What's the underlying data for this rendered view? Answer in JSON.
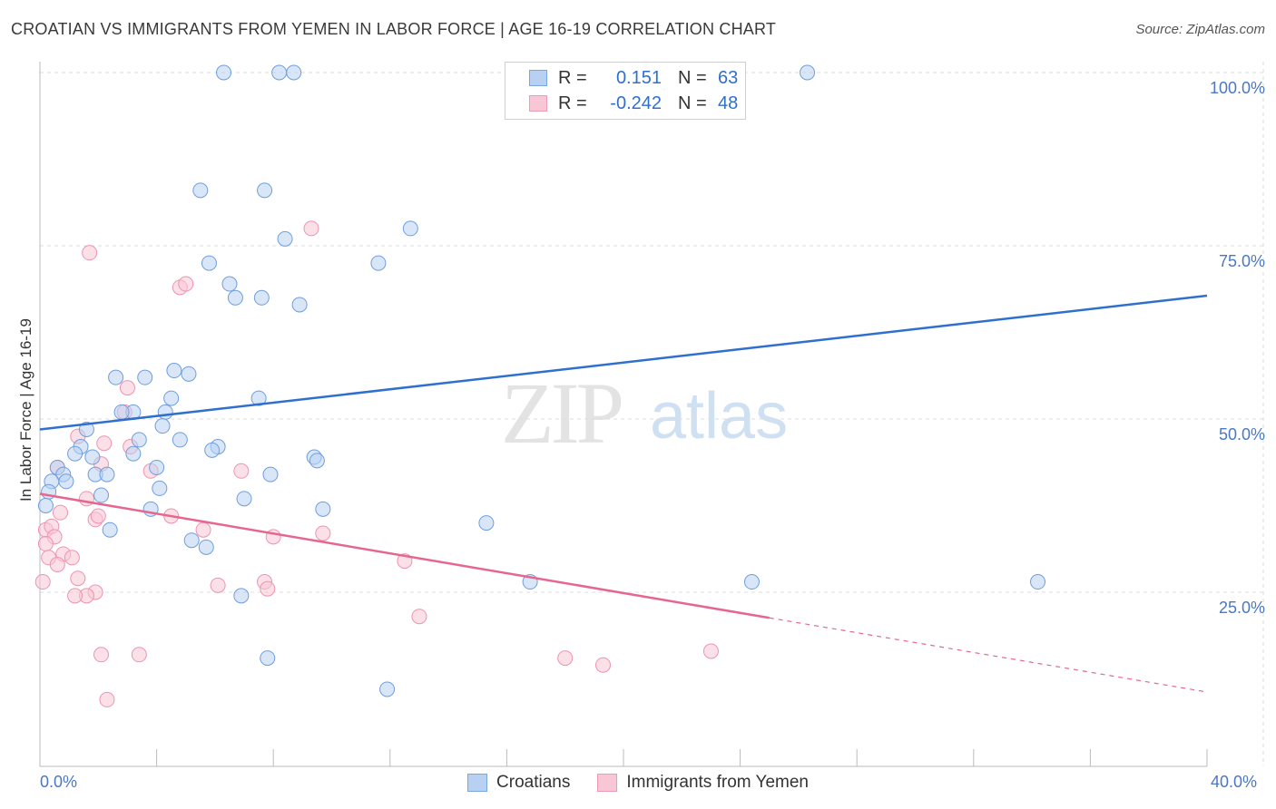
{
  "title": "CROATIAN VS IMMIGRANTS FROM YEMEN IN LABOR FORCE | AGE 16-19 CORRELATION CHART",
  "source": "Source: ZipAtlas.com",
  "watermark": {
    "zip": "ZIP",
    "atlas": "atlas"
  },
  "legend": {
    "r_label": "R =",
    "n_label": "N =",
    "rows": [
      {
        "r": "0.151",
        "n": "63",
        "fill": "#b8d1f3",
        "stroke": "#7aa6e0"
      },
      {
        "r": "-0.242",
        "n": "48",
        "fill": "#f9c6d6",
        "stroke": "#ef9ab4"
      }
    ]
  },
  "bottom_legend": [
    {
      "label": "Croatians",
      "fill": "#b8d1f3",
      "stroke": "#7aa6e0"
    },
    {
      "label": "Immigrants from Yemen",
      "fill": "#f9c6d6",
      "stroke": "#ef9ab4"
    }
  ],
  "axes": {
    "ylabel": "In Labor Force | Age 16-19",
    "x_min_label": "0.0%",
    "x_max_label": "40.0%",
    "y_ticks": [
      "100.0%",
      "75.0%",
      "50.0%",
      "25.0%"
    ]
  },
  "colors": {
    "blue_line": "#2f6fce",
    "pink_line": "#e5678f",
    "blue_fill": "#b8d1f3",
    "blue_stroke": "#6f9edd",
    "pink_fill": "#f9c6d6",
    "pink_stroke": "#ec94b0",
    "grid": "#dddddd",
    "tick_text": "#4a78c4"
  },
  "chart_data": {
    "type": "scatter",
    "xlabel": "",
    "ylabel": "In Labor Force | Age 16-19",
    "xlim": [
      0,
      40
    ],
    "ylim": [
      0,
      100
    ],
    "grid": true,
    "series": [
      {
        "name": "Croatians",
        "trend": [
          [
            0,
            48.5
          ],
          [
            40,
            67.8
          ]
        ],
        "trend_dashed_from": null,
        "points": [
          [
            6.3,
            100
          ],
          [
            8.2,
            100
          ],
          [
            8.7,
            100
          ],
          [
            22.8,
            100
          ],
          [
            26.3,
            100
          ],
          [
            5.5,
            83
          ],
          [
            7.7,
            83
          ],
          [
            12.7,
            77.5
          ],
          [
            8.4,
            76
          ],
          [
            5.8,
            72.5
          ],
          [
            11.6,
            72.5
          ],
          [
            6.5,
            69.5
          ],
          [
            6.7,
            67.5
          ],
          [
            7.6,
            67.5
          ],
          [
            8.9,
            66.5
          ],
          [
            4.6,
            57
          ],
          [
            5.1,
            56.5
          ],
          [
            2.6,
            56
          ],
          [
            3.6,
            56
          ],
          [
            4.5,
            53
          ],
          [
            7.5,
            53
          ],
          [
            3.2,
            51
          ],
          [
            2.8,
            51
          ],
          [
            4.3,
            51
          ],
          [
            4.2,
            49
          ],
          [
            1.6,
            48.5
          ],
          [
            4.8,
            47
          ],
          [
            3.4,
            47
          ],
          [
            6.1,
            46
          ],
          [
            5.9,
            45.5
          ],
          [
            1.4,
            46
          ],
          [
            1.2,
            45
          ],
          [
            1.8,
            44.5
          ],
          [
            3.2,
            45
          ],
          [
            9.4,
            44.5
          ],
          [
            9.5,
            44
          ],
          [
            0.6,
            43
          ],
          [
            0.8,
            42
          ],
          [
            4.0,
            43
          ],
          [
            1.9,
            42
          ],
          [
            2.3,
            42
          ],
          [
            0.4,
            41
          ],
          [
            7.9,
            42
          ],
          [
            0.9,
            41
          ],
          [
            0.3,
            39.5
          ],
          [
            4.1,
            40
          ],
          [
            2.1,
            39
          ],
          [
            7.0,
            38.5
          ],
          [
            3.8,
            37
          ],
          [
            9.7,
            37
          ],
          [
            15.3,
            35
          ],
          [
            0.2,
            37.5
          ],
          [
            2.4,
            34
          ],
          [
            5.2,
            32.5
          ],
          [
            5.7,
            31.5
          ],
          [
            16.8,
            26.5
          ],
          [
            24.4,
            26.5
          ],
          [
            34.2,
            26.5
          ],
          [
            6.9,
            24.5
          ],
          [
            7.8,
            15.5
          ],
          [
            11.9,
            11
          ]
        ]
      },
      {
        "name": "Immigrants from Yemen",
        "trend": [
          [
            0,
            39.2
          ],
          [
            25,
            21.3
          ]
        ],
        "trend_dashed_to": [
          40,
          10.6
        ],
        "points": [
          [
            9.3,
            77.5
          ],
          [
            1.7,
            74
          ],
          [
            4.8,
            69
          ],
          [
            5.0,
            69.5
          ],
          [
            3.0,
            54.5
          ],
          [
            2.9,
            51
          ],
          [
            0.6,
            43
          ],
          [
            2.2,
            46.5
          ],
          [
            3.1,
            46
          ],
          [
            1.3,
            47.5
          ],
          [
            2.1,
            43.5
          ],
          [
            3.8,
            42.5
          ],
          [
            6.9,
            42.5
          ],
          [
            1.6,
            38.5
          ],
          [
            0.7,
            36.5
          ],
          [
            4.5,
            36
          ],
          [
            1.9,
            35.5
          ],
          [
            2.0,
            36
          ],
          [
            0.2,
            34
          ],
          [
            0.4,
            34.5
          ],
          [
            0.5,
            33
          ],
          [
            8.0,
            33
          ],
          [
            9.7,
            33.5
          ],
          [
            5.6,
            34
          ],
          [
            0.2,
            32
          ],
          [
            0.3,
            30
          ],
          [
            0.8,
            30.5
          ],
          [
            1.1,
            30
          ],
          [
            12.5,
            29.5
          ],
          [
            0.6,
            29
          ],
          [
            0.1,
            26.5
          ],
          [
            1.3,
            27
          ],
          [
            6.1,
            26
          ],
          [
            7.7,
            26.5
          ],
          [
            7.8,
            25.5
          ],
          [
            1.9,
            25
          ],
          [
            1.6,
            24.5
          ],
          [
            1.2,
            24.5
          ],
          [
            13.0,
            21.5
          ],
          [
            2.1,
            16
          ],
          [
            3.4,
            16
          ],
          [
            18.0,
            15.5
          ],
          [
            19.3,
            14.5
          ],
          [
            23.0,
            16.5
          ],
          [
            2.3,
            9.5
          ]
        ]
      }
    ]
  }
}
